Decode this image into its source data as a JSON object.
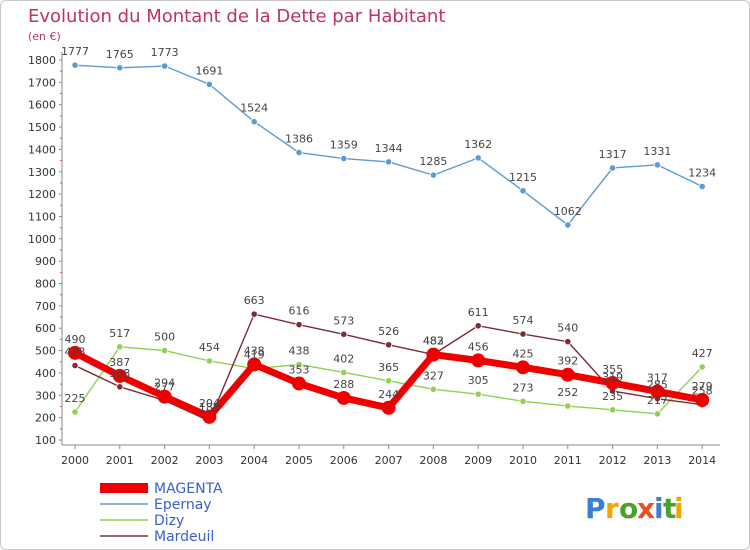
{
  "chart_data": {
    "type": "line",
    "title": "Evolution du Montant de la Dette par Habitant",
    "subtitle": "(en €)",
    "xlabel": "",
    "ylabel": "",
    "ylim": [
      100,
      1800
    ],
    "yticks": [
      100,
      200,
      300,
      400,
      500,
      600,
      700,
      800,
      900,
      1000,
      1100,
      1200,
      1300,
      1400,
      1500,
      1600,
      1700,
      1800
    ],
    "x": [
      "2000",
      "2001",
      "2002",
      "2003",
      "2004",
      "2005",
      "2006",
      "2007",
      "2008",
      "2009",
      "2010",
      "2011",
      "2012",
      "2013",
      "2014"
    ],
    "grid": false,
    "legend_position": "bottom-left",
    "series": [
      {
        "name": "MAGENTA",
        "color": "#ee0000",
        "values": [
          490,
          387,
          294,
          204,
          438,
          353,
          288,
          244,
          482,
          456,
          425,
          392,
          355,
          317,
          279
        ]
      },
      {
        "name": "Epernay",
        "color": "#5b9bd5",
        "values": [
          1777,
          1765,
          1773,
          1691,
          1524,
          1386,
          1359,
          1344,
          1285,
          1362,
          1215,
          1062,
          1317,
          1331,
          1234
        ]
      },
      {
        "name": "Dizy",
        "color": "#92d050",
        "values": [
          225,
          517,
          500,
          454,
          419,
          438,
          402,
          365,
          327,
          305,
          273,
          252,
          235,
          217,
          427
        ]
      },
      {
        "name": "Mardeuil",
        "color": "#7b2c35",
        "values": [
          433,
          338,
          277,
          185,
          663,
          616,
          573,
          526,
          483,
          611,
          574,
          540,
          319,
          285,
          258
        ]
      }
    ]
  },
  "logo": {
    "text": "Proxiti",
    "letter_colors": [
      "#3a7fd5",
      "#f7a300",
      "#4aa02c",
      "#e8501c",
      "#3a7fd5",
      "#4aa02c",
      "#f7a300"
    ]
  }
}
